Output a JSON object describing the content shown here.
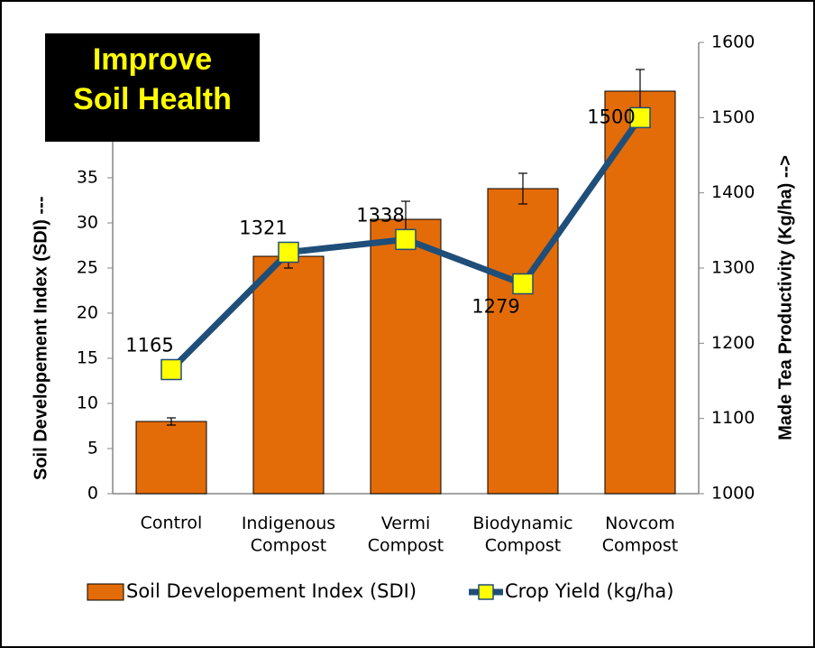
{
  "chart_data": {
    "type": "bar+line",
    "title": "Improve Soil Health",
    "ylabel": "Soil Developement Index (SDI) ---",
    "y2label": "Made Tea Productivity (Kg/ha) -->",
    "categories": [
      "Control",
      "Indigenous Compost",
      "Vermi Compost",
      "Biodynamic Compost",
      "Novcom Compost"
    ],
    "series": [
      {
        "name": "Soil Developement Index (SDI)",
        "type": "bar",
        "color": "#e36c09",
        "values": [
          8.0,
          26.3,
          30.4,
          33.8,
          44.6
        ],
        "errors": [
          0.4,
          1.3,
          2.0,
          1.7,
          2.4
        ]
      },
      {
        "name": "Crop Yield (kg/ha)",
        "type": "line",
        "axis": "y2",
        "color": "#1f4e79",
        "marker_color": "#ffff00",
        "values": [
          1165,
          1321,
          1338,
          1279,
          1500
        ]
      }
    ],
    "ylim": [
      0,
      50
    ],
    "yticks": [
      0,
      5,
      10,
      15,
      20,
      25,
      30,
      35
    ],
    "y2lim": [
      1000,
      1600
    ],
    "y2ticks": [
      1000,
      1100,
      1200,
      1300,
      1400,
      1500,
      1600
    ],
    "legend": "bottom"
  }
}
